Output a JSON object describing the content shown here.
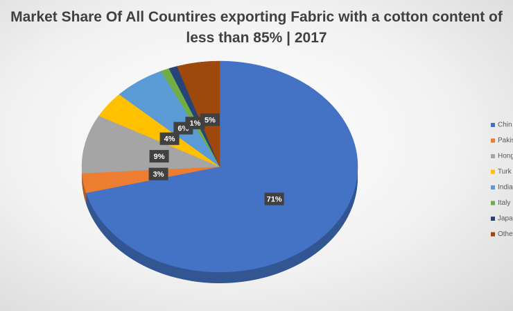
{
  "chart_data": {
    "type": "pie",
    "title": "Market Share Of All Countires exporting Fabric with a cotton content of less than 85% | 2017",
    "categories": [
      "Chin",
      "Pakis",
      "Hong",
      "Turk",
      "India",
      "Italy",
      "Japa",
      "Othe"
    ],
    "values": [
      71,
      3,
      9,
      4,
      6,
      1,
      1,
      5
    ],
    "value_labels": [
      "71%",
      "3%",
      "9%",
      "4%",
      "6%",
      "1%",
      null,
      "5%"
    ],
    "colors": [
      "#4472c4",
      "#ed7d31",
      "#a5a5a5",
      "#ffc000",
      "#5b9bd5",
      "#70ad47",
      "#264478",
      "#9e480e"
    ],
    "legend": "right"
  }
}
